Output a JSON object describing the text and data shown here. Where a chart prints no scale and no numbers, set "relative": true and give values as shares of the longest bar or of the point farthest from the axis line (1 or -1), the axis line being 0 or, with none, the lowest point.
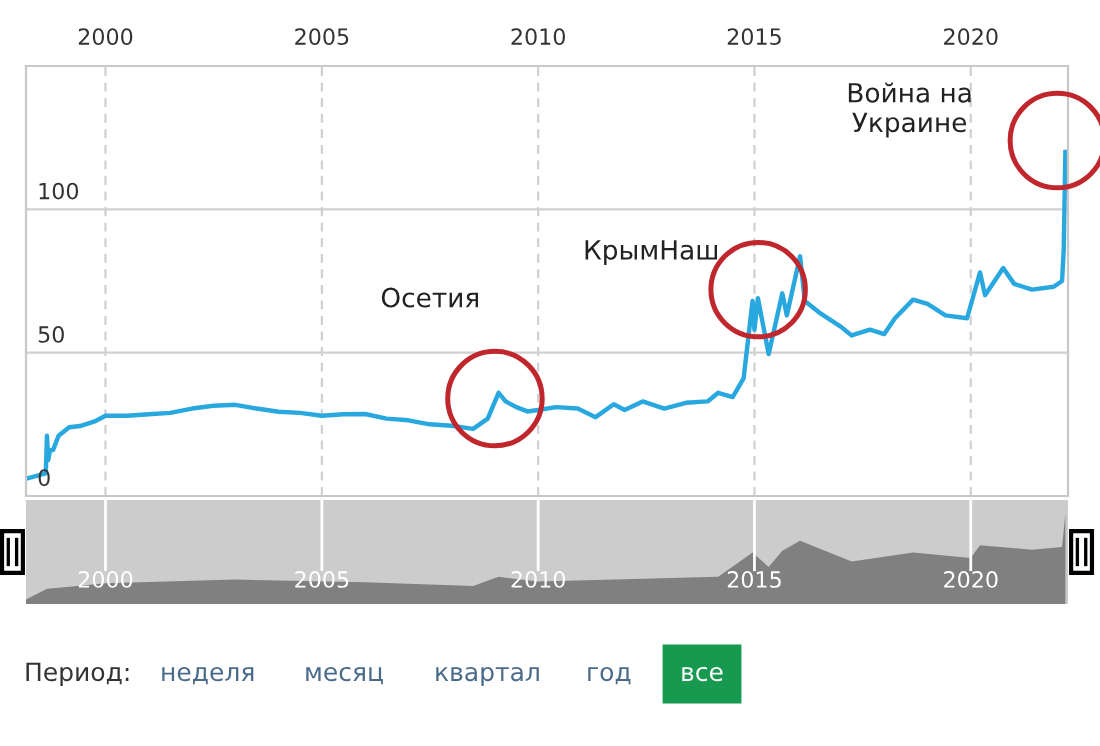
{
  "chart_data": [
    {
      "type": "line",
      "xlim": [
        "1998-03",
        "2022-04"
      ],
      "ylim": [
        0,
        150
      ],
      "xticks": [
        {
          "value": "2000",
          "label": "2000"
        },
        {
          "value": "2005",
          "label": "2005"
        },
        {
          "value": "2010",
          "label": "2010"
        },
        {
          "value": "2015",
          "label": "2015"
        },
        {
          "value": "2020",
          "label": "2020"
        }
      ],
      "yticks": [
        0,
        50,
        100
      ],
      "grid": true,
      "series": [
        {
          "type": "line",
          "color": "#29a8e0",
          "marker": "none",
          "line_style": "solid",
          "x": [
            "1998-03",
            "1998-08-15",
            "1998-08-25",
            "1998-09-05",
            "1998-09-20",
            "1998-10-15",
            "1998-12-01",
            "1999-03",
            "1999-06",
            "1999-10",
            "2000-01",
            "2000-07",
            "2001-01",
            "2001-07",
            "2002-01",
            "2002-07",
            "2003-01",
            "2003-07",
            "2004-01",
            "2004-07",
            "2005-01",
            "2005-07",
            "2006-01",
            "2006-07",
            "2007-01",
            "2007-07",
            "2008-01",
            "2008-07",
            "2008-11",
            "2009-02",
            "2009-04",
            "2009-07",
            "2009-10",
            "2010-01",
            "2010-06",
            "2010-12",
            "2011-05",
            "2011-10",
            "2012-01",
            "2012-06",
            "2012-12",
            "2013-06",
            "2013-12",
            "2014-03",
            "2014-07",
            "2014-10",
            "2014-12-16",
            "2015-01-01",
            "2015-01-30",
            "2015-05",
            "2015-08-24",
            "2015-10",
            "2016-01-21",
            "2016-03",
            "2016-07",
            "2017-01",
            "2017-04",
            "2017-09",
            "2018-01",
            "2018-04",
            "2018-09",
            "2019-01",
            "2019-06",
            "2019-12",
            "2020-03-19",
            "2020-05",
            "2020-10",
            "2021-01",
            "2021-06",
            "2021-12",
            "2022-02-10",
            "2022-02-24",
            "2022-03-10"
          ],
          "values": [
            6,
            7.9,
            21,
            12.5,
            16,
            16,
            21,
            24,
            24.4,
            26,
            28,
            28,
            28.5,
            29,
            30.5,
            31.5,
            31.8,
            30.5,
            29.4,
            29,
            28,
            28.5,
            28.6,
            27,
            26.4,
            25,
            24.5,
            23.4,
            27,
            36,
            33,
            31,
            29.5,
            30,
            31,
            30.5,
            27.5,
            32,
            30,
            33,
            30.5,
            32.5,
            33,
            36,
            34.5,
            41,
            68,
            58,
            69,
            49.5,
            70.7,
            63,
            83.6,
            68,
            64,
            59,
            56,
            58,
            56.5,
            62,
            68.5,
            67,
            63,
            62,
            78,
            70,
            79.5,
            74,
            72,
            73,
            75,
            86,
            120
          ]
        },
        {
          "type": "scatter",
          "color": "#c0272d",
          "marker": "circle",
          "x": [
            "2009-01",
            "2015-02",
            "2022-01"
          ],
          "values": [
            34,
            72,
            124
          ]
        }
      ],
      "annotations": [
        "Осетия",
        "КрымНаш",
        "Война на\nУкраине"
      ]
    },
    {
      "type": "area",
      "relative": true,
      "x": [
        "1998-03",
        "1998-08-25",
        "1998-12-01",
        "2000-01",
        "2003-01",
        "2006-01",
        "2008-07",
        "2009-02",
        "2010-01",
        "2012-06",
        "2014-03",
        "2014-12-16",
        "2015-05",
        "2015-08-24",
        "2016-01-21",
        "2017-04",
        "2018-09",
        "2020-01",
        "2020-03-19",
        "2021-06",
        "2022-02-10",
        "2022-03-10"
      ],
      "values": [
        0.05,
        0.17,
        0.18,
        0.23,
        0.27,
        0.24,
        0.2,
        0.3,
        0.25,
        0.28,
        0.3,
        0.57,
        0.41,
        0.59,
        0.7,
        0.47,
        0.57,
        0.51,
        0.65,
        0.6,
        0.63,
        1
      ],
      "color": "#808080",
      "xlim": [
        "1998-03",
        "2022-04"
      ],
      "xticks": [
        {
          "value": "2000",
          "label": "2000"
        },
        {
          "value": "2005",
          "label": "2005"
        },
        {
          "value": "2010",
          "label": "2010"
        },
        {
          "value": "2015",
          "label": "2015"
        },
        {
          "value": "2020",
          "label": "2020"
        }
      ],
      "grid": "x",
      "annotations": [
        "Период:",
        "неделя",
        "месяц",
        "квартал",
        "год",
        "все"
      ]
    }
  ]
}
